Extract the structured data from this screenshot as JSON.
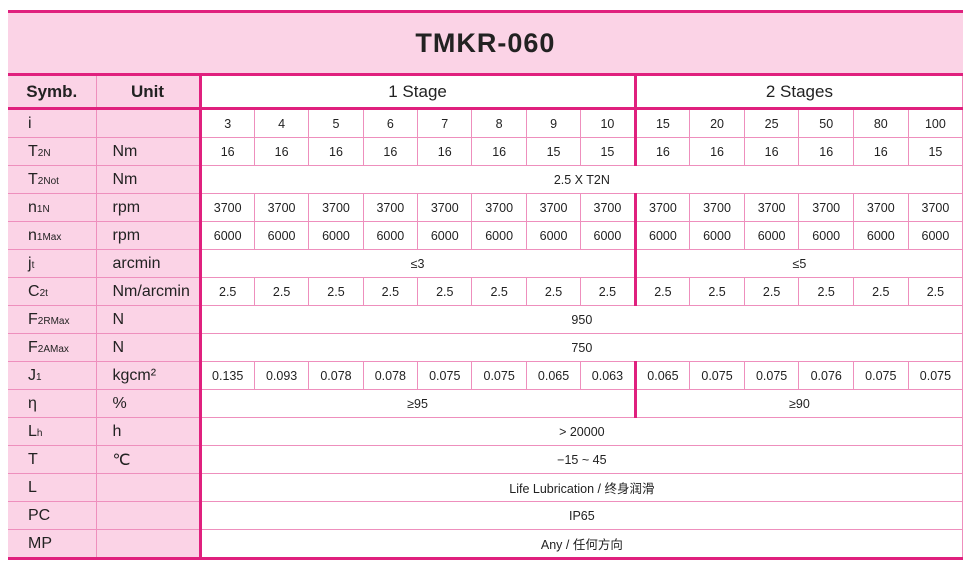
{
  "title": "TMKR-060",
  "header": {
    "symb": "Symb.",
    "unit": "Unit",
    "stage1": "1 Stage",
    "stage2": "2 Stages"
  },
  "colors": {
    "border": "#e0207e",
    "header_bg": "#fbd3e6"
  },
  "rows": [
    {
      "symbol": "i",
      "sub": "",
      "unit": "",
      "type": "cells",
      "values": [
        "3",
        "4",
        "5",
        "6",
        "7",
        "8",
        "9",
        "10",
        "15",
        "20",
        "25",
        "50",
        "80",
        "100"
      ]
    },
    {
      "symbol": "T",
      "sub": "2N",
      "unit": "Nm",
      "type": "cells",
      "values": [
        "16",
        "16",
        "16",
        "16",
        "16",
        "16",
        "15",
        "15",
        "16",
        "16",
        "16",
        "16",
        "16",
        "15"
      ]
    },
    {
      "symbol": "T",
      "sub": "2Not",
      "unit": "Nm",
      "type": "full",
      "value": "2.5 X T2N"
    },
    {
      "symbol": "n",
      "sub": "1N",
      "unit": "rpm",
      "type": "cells",
      "values": [
        "3700",
        "3700",
        "3700",
        "3700",
        "3700",
        "3700",
        "3700",
        "3700",
        "3700",
        "3700",
        "3700",
        "3700",
        "3700",
        "3700"
      ]
    },
    {
      "symbol": "n",
      "sub": "1Max",
      "unit": "rpm",
      "type": "cells",
      "values": [
        "6000",
        "6000",
        "6000",
        "6000",
        "6000",
        "6000",
        "6000",
        "6000",
        "6000",
        "6000",
        "6000",
        "6000",
        "6000",
        "6000"
      ]
    },
    {
      "symbol": "j",
      "sub": "t",
      "unit": "arcmin",
      "type": "split",
      "values": [
        "≤3",
        "≤5"
      ]
    },
    {
      "symbol": "C",
      "sub": "2t",
      "unit": "Nm/arcmin",
      "type": "cells",
      "values": [
        "2.5",
        "2.5",
        "2.5",
        "2.5",
        "2.5",
        "2.5",
        "2.5",
        "2.5",
        "2.5",
        "2.5",
        "2.5",
        "2.5",
        "2.5",
        "2.5"
      ]
    },
    {
      "symbol": "F",
      "sub": "2RMax",
      "unit": "N",
      "type": "full",
      "value": "950"
    },
    {
      "symbol": "F",
      "sub": "2AMax",
      "unit": "N",
      "type": "full",
      "value": "750"
    },
    {
      "symbol": "J",
      "sub": "1",
      "unit": "kgcm²",
      "type": "cells",
      "values": [
        "0.135",
        "0.093",
        "0.078",
        "0.078",
        "0.075",
        "0.075",
        "0.065",
        "0.063",
        "0.065",
        "0.075",
        "0.075",
        "0.076",
        "0.075",
        "0.075"
      ]
    },
    {
      "symbol": "η",
      "sub": "",
      "unit": "%",
      "type": "split",
      "values": [
        "≥95",
        "≥90"
      ]
    },
    {
      "symbol": "L",
      "sub": "h",
      "unit": "h",
      "type": "full",
      "value": "> 20000"
    },
    {
      "symbol": "T",
      "sub": "",
      "unit": "℃",
      "type": "full",
      "value": "−15 ~ 45"
    },
    {
      "symbol": "L",
      "sub": "",
      "unit": "",
      "type": "full",
      "value": "Life Lubrication / 终身润滑"
    },
    {
      "symbol": "PC",
      "sub": "",
      "unit": "",
      "type": "full",
      "value": "IP65"
    },
    {
      "symbol": "MP",
      "sub": "",
      "unit": "",
      "type": "full",
      "value": "Any / 任何方向"
    }
  ]
}
